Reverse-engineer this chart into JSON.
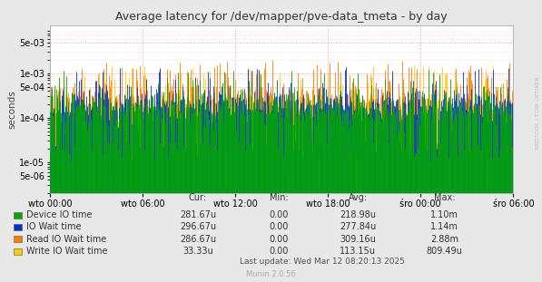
{
  "title": "Average latency for /dev/mapper/pve-data_tmeta - by day",
  "ylabel": "seconds",
  "xlabel_ticks": [
    "wto 00:00",
    "wto 06:00",
    "wto 12:00",
    "wto 18:00",
    "śro 00:00",
    "śro 06:00"
  ],
  "ymin": 2e-06,
  "ymax": 0.012,
  "background_color": "#e8e8e8",
  "plot_bg_color": "#ffffff",
  "grid_color_major": "#ff9999",
  "grid_color_minor": "#ffcccc",
  "legend_labels": [
    "Device IO time",
    "IO Wait time",
    "Read IO Wait time",
    "Write IO Wait time"
  ],
  "legend_colors": [
    "#00aa00",
    "#0033cc",
    "#ff7f00",
    "#ffcc00"
  ],
  "table_headers": [
    "Cur:",
    "Min:",
    "Avg:",
    "Max:"
  ],
  "table_data": [
    [
      "281.67u",
      "0.00",
      "218.98u",
      "1.10m"
    ],
    [
      "296.67u",
      "0.00",
      "277.84u",
      "1.14m"
    ],
    [
      "286.67u",
      "0.00",
      "309.16u",
      "2.88m"
    ],
    [
      "33.33u",
      "0.00",
      "113.15u",
      "809.49u"
    ]
  ],
  "watermark": "RRDTOOL / TOBI OETIKER",
  "munin_version": "Munin 2.0.56",
  "last_update": "Last update: Wed Mar 12 08:20:13 2025",
  "n_points": 600,
  "seed": 42
}
